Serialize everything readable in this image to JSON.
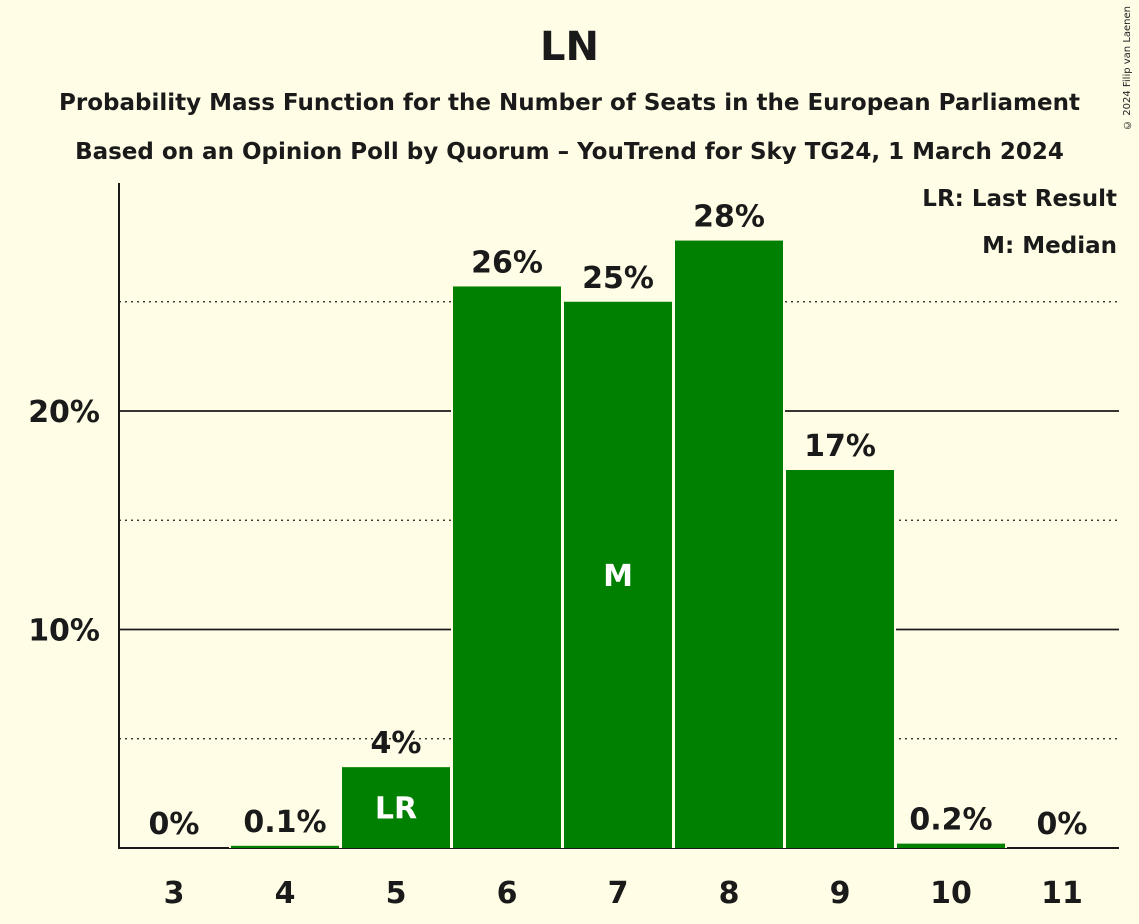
{
  "header": {
    "title": "LN",
    "subtitle1": "Probability Mass Function for the Number of Seats in the European Parliament",
    "subtitle2": "Based on an Opinion Poll by Quorum – YouTrend for Sky TG24, 1 March 2024",
    "copyright": "© 2024 Filip van Laenen"
  },
  "legend": {
    "last_result": "LR: Last Result",
    "median": "M: Median"
  },
  "colors": {
    "background": "#FFFDE6",
    "bar": "#008000",
    "text": "#1a1a1a",
    "bar_label": "#FFFFFF"
  },
  "chart_data": {
    "type": "bar",
    "title": "LN",
    "categories": [
      "3",
      "4",
      "5",
      "6",
      "7",
      "8",
      "9",
      "10",
      "11"
    ],
    "values": [
      0,
      0.1,
      3.7,
      25.7,
      25.0,
      27.8,
      17.3,
      0.2,
      0
    ],
    "value_labels": [
      "0%",
      "0.1%",
      "4%",
      "26%",
      "25%",
      "28%",
      "17%",
      "0.2%",
      "0%"
    ],
    "bar_markers": [
      "",
      "",
      "LR",
      "",
      "M",
      "",
      "",
      "",
      ""
    ],
    "y_ticks": [
      10,
      20
    ],
    "y_tick_labels": [
      "10%",
      "20%"
    ],
    "y_minor_gridlines": [
      5,
      15,
      25
    ],
    "ylim": [
      0,
      30.4
    ],
    "xlabel": "",
    "ylabel": "",
    "grid": true,
    "legend_position": "top-right"
  }
}
